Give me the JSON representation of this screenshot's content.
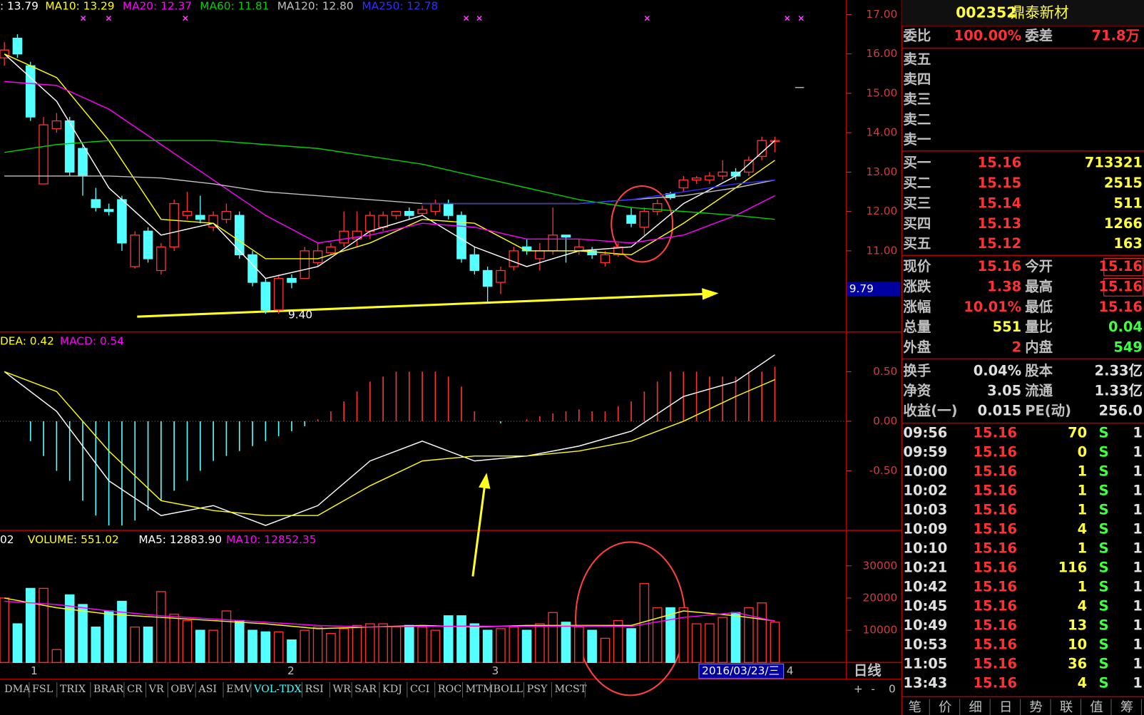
{
  "header": {
    "code": "002352",
    "name": "鼎泰新材"
  },
  "kline": {
    "legend": [
      {
        "text": ": 13.79",
        "color": "#ffffff"
      },
      {
        "text": "MA10: 13.29",
        "color": "#ffff00"
      },
      {
        "text": "MA20: 12.37",
        "color": "#ff00ff"
      },
      {
        "text": "MA60: 11.81",
        "color": "#00d000"
      },
      {
        "text": "MA120: 12.80",
        "color": "#c0c0c0"
      },
      {
        "text": "MA250: 12.78",
        "color": "#3030ff"
      }
    ],
    "ylim": [
      8.94,
      17.37
    ],
    "yticks": [
      {
        "value": 17,
        "label": "17.00"
      },
      {
        "value": 16,
        "label": "16.00"
      },
      {
        "value": 15,
        "label": "15.00"
      },
      {
        "value": 14,
        "label": "14.00"
      },
      {
        "value": 13,
        "label": "13.00"
      },
      {
        "value": 12,
        "label": "12.00"
      },
      {
        "value": 11,
        "label": "11.00"
      }
    ],
    "up_color": "#ff3232",
    "down_color": "#54ffff",
    "open": [
      15.9,
      16.4,
      15.7,
      12.7,
      14.1,
      14.3,
      13.6,
      12.3,
      12.05,
      12.3,
      10.6,
      11.5,
      10.5,
      11.1,
      11.9,
      11.9,
      11.6,
      11.8,
      11.9,
      10.9,
      10.2,
      9.5,
      10.3,
      10.3,
      10.7,
      10.95,
      11.2,
      11.3,
      11.5,
      11.6,
      11.9,
      12.0,
      11.95,
      12.0,
      12.2,
      11.9,
      10.9,
      10.5,
      10.2,
      10.6,
      11.1,
      10.8,
      11.0,
      11.4,
      11.0,
      11.0,
      10.7,
      10.9,
      11.9,
      11.6,
      12.0,
      12.45,
      12.6,
      12.8,
      12.8,
      12.9,
      13.0,
      13.0,
      13.4,
      13.8
    ],
    "high": [
      16.3,
      16.5,
      15.8,
      14.4,
      14.5,
      14.4,
      13.7,
      12.6,
      12.2,
      12.4,
      11.5,
      11.6,
      11.2,
      12.3,
      12.5,
      12.4,
      12.0,
      12.2,
      12.0,
      11.0,
      10.3,
      10.4,
      10.4,
      11.1,
      11.2,
      11.2,
      12.0,
      12.0,
      12.0,
      12.0,
      12.0,
      12.1,
      12.15,
      12.3,
      12.3,
      12.0,
      11.1,
      10.6,
      10.6,
      11.1,
      11.3,
      11.2,
      12.1,
      11.4,
      11.3,
      11.1,
      11.0,
      11.2,
      12.1,
      12.1,
      12.3,
      12.5,
      12.9,
      12.9,
      13.0,
      13.3,
      13.1,
      13.4,
      13.9,
      13.9
    ],
    "low": [
      15.7,
      15.9,
      14.3,
      12.7,
      14.0,
      12.9,
      12.4,
      12.0,
      11.9,
      11.0,
      10.55,
      10.7,
      10.4,
      11.0,
      11.8,
      11.7,
      11.5,
      11.7,
      10.8,
      10.1,
      9.4,
      9.4,
      10.05,
      10.3,
      10.6,
      10.9,
      11.1,
      11.1,
      11.3,
      11.5,
      11.8,
      11.8,
      11.9,
      11.9,
      11.8,
      10.7,
      10.4,
      9.7,
      9.9,
      10.5,
      10.9,
      10.5,
      10.9,
      10.7,
      10.9,
      10.8,
      10.6,
      10.85,
      11.6,
      11.4,
      11.9,
      12.3,
      12.5,
      12.7,
      12.7,
      12.8,
      12.8,
      12.9,
      13.3,
      13.5
    ],
    "close": [
      16.1,
      16.0,
      14.4,
      14.2,
      14.3,
      13.0,
      12.9,
      12.1,
      12.0,
      11.2,
      11.4,
      10.8,
      11.1,
      12.2,
      12.0,
      11.8,
      11.9,
      12.0,
      10.9,
      10.2,
      9.5,
      10.3,
      10.2,
      11.0,
      11.0,
      11.1,
      11.5,
      11.5,
      11.9,
      11.9,
      12.0,
      11.9,
      12.05,
      12.2,
      11.9,
      10.8,
      10.5,
      10.1,
      10.5,
      11.0,
      11.0,
      11.0,
      11.4,
      11.35,
      11.1,
      10.9,
      10.9,
      11.1,
      11.7,
      12.0,
      12.2,
      12.35,
      12.8,
      12.85,
      12.9,
      13.0,
      12.9,
      13.3,
      13.8,
      13.8
    ],
    "ma_index": [
      0,
      4,
      8,
      12,
      16,
      20,
      24,
      28,
      32,
      36,
      40,
      44,
      48,
      52,
      56,
      59
    ],
    "ma_lines": [
      {
        "color": "#ffffff",
        "values": [
          16.0,
          14.8,
          12.6,
          11.4,
          11.7,
          10.3,
          10.6,
          11.5,
          11.9,
          11.1,
          10.6,
          11.0,
          11.1,
          12.2,
          12.9,
          13.8
        ]
      },
      {
        "color": "#ffff00",
        "values": [
          16.0,
          15.4,
          13.8,
          11.8,
          11.7,
          10.8,
          10.8,
          11.2,
          11.8,
          11.7,
          11.0,
          11.0,
          10.9,
          11.7,
          12.6,
          13.3
        ]
      },
      {
        "color": "#ff00ff",
        "values": [
          15.3,
          15.2,
          14.6,
          13.7,
          12.8,
          11.9,
          11.2,
          11.4,
          11.7,
          11.6,
          11.3,
          11.3,
          11.2,
          11.4,
          11.9,
          12.4
        ]
      },
      {
        "color": "#00d000",
        "values": [
          13.5,
          13.7,
          13.8,
          13.8,
          13.8,
          13.7,
          13.6,
          13.4,
          13.2,
          12.9,
          12.6,
          12.3,
          12.1,
          12.0,
          11.9,
          11.8
        ]
      },
      {
        "color": "#c0c0c0",
        "values": [
          12.9,
          12.9,
          12.9,
          12.85,
          12.7,
          12.5,
          12.4,
          12.3,
          12.2,
          12.2,
          12.2,
          12.2,
          12.3,
          12.4,
          12.6,
          12.8
        ]
      },
      {
        "color": "#3030ff",
        "values": [
          null,
          null,
          null,
          null,
          null,
          null,
          null,
          null,
          12.2,
          12.2,
          12.2,
          12.2,
          12.3,
          12.5,
          12.7,
          12.8
        ]
      }
    ],
    "low_mark": "9.40",
    "price_box": "9.79"
  },
  "macd": {
    "legend": [
      {
        "text": "DEA: 0.42",
        "color": "#ffff00"
      },
      {
        "text": "MACD: 0.54",
        "color": "#ff00ff"
      }
    ],
    "ylim": [
      -1.1,
      0.9
    ],
    "yticks": [
      {
        "value": 0.5,
        "label": "0.50"
      },
      {
        "value": 0,
        "label": "0.00"
      },
      {
        "value": -0.5,
        "label": "-0.50"
      }
    ],
    "histogram": [
      0,
      0,
      -0.2,
      -0.35,
      -0.5,
      -0.6,
      -0.8,
      -0.95,
      -1.05,
      -1.05,
      -1.0,
      -0.9,
      -0.8,
      -0.7,
      -0.6,
      -0.5,
      -0.4,
      -0.35,
      -0.3,
      -0.25,
      -0.2,
      -0.15,
      -0.1,
      -0.05,
      0.02,
      0.1,
      0.2,
      0.3,
      0.4,
      0.45,
      0.5,
      0.5,
      0.5,
      0.5,
      0.45,
      0.35,
      0.1,
      0.0,
      -0.02,
      0.0,
      0.02,
      0.05,
      0.08,
      0.1,
      0.12,
      0.1,
      0.1,
      0.15,
      0.2,
      0.3,
      0.4,
      0.5,
      0.5,
      0.5,
      0.45,
      0.45,
      0.45,
      0.5,
      0.5,
      0.55
    ],
    "lines": [
      {
        "color": "#ffffff",
        "values": [
          0.5,
          0.1,
          -0.6,
          -0.95,
          -0.85,
          -1.05,
          -0.85,
          -0.4,
          -0.2,
          -0.4,
          -0.35,
          -0.25,
          -0.1,
          0.25,
          0.4,
          0.67
        ]
      },
      {
        "color": "#ffff00",
        "values": [
          0.5,
          0.3,
          -0.3,
          -0.8,
          -0.9,
          -0.95,
          -0.95,
          -0.65,
          -0.4,
          -0.35,
          -0.35,
          -0.3,
          -0.2,
          0.0,
          0.25,
          0.42
        ]
      }
    ]
  },
  "volume": {
    "legend": [
      {
        "text": "02",
        "color": "#ffffff"
      },
      {
        "text": "VOLUME: 551.02",
        "color": "#ffff00"
      },
      {
        "text": "MA5: 12883.90",
        "color": "#ffffff"
      },
      {
        "text": "MA10: 12852.35",
        "color": "#ff00ff"
      }
    ],
    "ylim": [
      0,
      41000
    ],
    "yticks": [
      10000,
      20000,
      30000
    ],
    "values": [
      20000,
      12000,
      23000,
      23000,
      4000,
      21000,
      18000,
      11000,
      16000,
      19000,
      11000,
      11000,
      22000,
      15000,
      13000,
      10000,
      10000,
      16000,
      13000,
      10000,
      9500,
      9500,
      7000,
      10000,
      11000,
      9000,
      10500,
      11500,
      12000,
      12000,
      11000,
      11500,
      11000,
      10000,
      14500,
      14500,
      12000,
      10000,
      10500,
      11000,
      10000,
      12000,
      15500,
      12500,
      11000,
      10000,
      7500,
      13000,
      10500,
      24500,
      17000,
      17000,
      17000,
      12000,
      12000,
      14000,
      15500,
      17000,
      18500,
      12500
    ],
    "lines": [
      {
        "color": "#ffff00",
        "values": [
          20000,
          17000,
          15000,
          14000,
          13000,
          12000,
          10500,
          11000,
          11500,
          11000,
          11500,
          11500,
          11500,
          16000,
          14500,
          12900
        ]
      },
      {
        "color": "#ff00ff",
        "values": [
          19000,
          18000,
          16000,
          14500,
          13500,
          12500,
          11500,
          11000,
          11200,
          11300,
          11200,
          11300,
          11200,
          14000,
          15500,
          12800
        ]
      }
    ]
  },
  "x_labels": [
    "1",
    "2",
    "3",
    "4"
  ],
  "date_box": "2016/03/23/三",
  "period": "日线",
  "tabs": [
    "DMA",
    "FSL",
    "TRIX",
    "BRAR",
    "CR",
    "VR",
    "OBV",
    "ASI",
    "EMV",
    "VOL-TDX",
    "RSI",
    "WR",
    "SAR",
    "KDJ",
    "CCI",
    "ROC",
    "MTM",
    "BOLL",
    "PSY",
    "MCST"
  ],
  "zoom": [
    "+",
    "-",
    "0"
  ],
  "order": {
    "ratio_label": "委比",
    "ratio": "100.00%",
    "diff_label": "委差",
    "diff": "71.8万",
    "asks": [
      "卖五",
      "卖四",
      "卖三",
      "卖二",
      "卖一"
    ],
    "bids": [
      [
        "买一",
        "15.16",
        "713321"
      ],
      [
        "买二",
        "15.15",
        "2515"
      ],
      [
        "买三",
        "15.14",
        "511"
      ],
      [
        "买四",
        "15.13",
        "1266"
      ],
      [
        "买五",
        "15.12",
        "163"
      ]
    ]
  },
  "stats": [
    [
      "现价",
      "15.16",
      "今开",
      "15.16"
    ],
    [
      "涨跌",
      "1.38",
      "最高",
      "15.16"
    ],
    [
      "涨幅",
      "10.01%",
      "最低",
      "15.16"
    ],
    [
      "总量",
      "551",
      "量比",
      "0.04"
    ],
    [
      "外盘",
      "2",
      "内盘",
      "549"
    ]
  ],
  "stats2": [
    [
      "换手",
      "0.04%",
      "股本",
      "2.33亿"
    ],
    [
      "净资",
      "3.05",
      "流通",
      "1.33亿"
    ],
    [
      "收益(一)",
      "0.015",
      "PE(动)",
      "256.0"
    ]
  ],
  "trades": [
    [
      "09:56",
      "15.16",
      "70",
      "S",
      "1"
    ],
    [
      "09:59",
      "15.16",
      "0",
      "S",
      "1"
    ],
    [
      "10:00",
      "15.16",
      "1",
      "S",
      "1"
    ],
    [
      "10:02",
      "15.16",
      "1",
      "S",
      "1"
    ],
    [
      "10:03",
      "15.16",
      "1",
      "S",
      "1"
    ],
    [
      "10:09",
      "15.16",
      "4",
      "S",
      "1"
    ],
    [
      "10:10",
      "15.16",
      "1",
      "S",
      "1"
    ],
    [
      "10:21",
      "15.16",
      "116",
      "S",
      "1"
    ],
    [
      "10:42",
      "15.16",
      "1",
      "S",
      "1"
    ],
    [
      "10:45",
      "15.16",
      "4",
      "S",
      "1"
    ],
    [
      "10:49",
      "15.16",
      "13",
      "S",
      "1"
    ],
    [
      "10:53",
      "15.16",
      "10",
      "S",
      "1"
    ],
    [
      "11:05",
      "15.16",
      "36",
      "S",
      "1"
    ],
    [
      "13:43",
      "15.16",
      "4",
      "S",
      "1"
    ]
  ],
  "bottom_tabs": [
    "笔",
    "价",
    "细",
    "日",
    "势",
    "联",
    "值",
    "筹"
  ]
}
